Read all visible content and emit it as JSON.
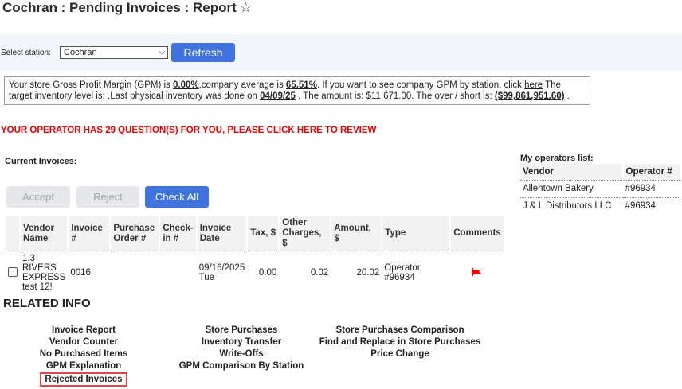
{
  "header": {
    "title": "Cochran : Pending Invoices : Report",
    "favorite_icon": "star-outline-icon"
  },
  "station": {
    "label": "Select station:",
    "selected": "Cochran",
    "refresh_label": "Refresh"
  },
  "info": {
    "t1": "Your store Gross Profit Margin (GPM) is ",
    "gpm": "0.00%",
    "t2": ",company average is ",
    "avg": "65.51%",
    "t3": ". If you want to see company GPM by station, click ",
    "here": "here",
    "t4": " The target inventory level is: .Last physical inventory was done on ",
    "date": "04/09/25",
    "t5": " . The amount is: $11,671.00. The over / short is: ",
    "overshort": "($99,861,951.60)",
    "t6": " ."
  },
  "alert": "YOUR OPERATOR HAS 29 QUESTION(S) FOR YOU, PLEASE CLICK HERE TO REVIEW",
  "invoices": {
    "title": "Current Invoices:",
    "accept": "Accept",
    "reject": "Reject",
    "check_all": "Check All",
    "columns": [
      "Vendor Name",
      "Invoice #",
      "Purchase Order #",
      "Check-in #",
      "Invoice Date",
      "Tax, $",
      "Other Charges, $",
      "Amount, $",
      "Type",
      "Comments"
    ],
    "rows": [
      {
        "vendor": "1.3 RIVERS EXPRESS test 12!",
        "invoice": "0016",
        "po": "",
        "checkin": "",
        "date": "09/16/2025",
        "day": "Tue",
        "tax": "0.00",
        "other": "0.02",
        "amount": "20.02",
        "type": "Operator #96934",
        "comment_icon": "red-flag-icon"
      }
    ]
  },
  "operators": {
    "title": "My operators list:",
    "columns": [
      "Vendor",
      "Operator #"
    ],
    "rows": [
      {
        "vendor": "Allentown Bakery",
        "op": "#96934"
      },
      {
        "vendor": "J & L Distributors LLC",
        "op": "#96934"
      }
    ]
  },
  "related": {
    "title": "RELATED INFO",
    "col1": [
      "Invoice Report",
      "Vendor Counter",
      "No Purchased Items",
      "GPM Explanation",
      "Rejected Invoices"
    ],
    "col2": [
      "Store Purchases",
      "Inventory Transfer",
      "Write-Offs",
      "GPM Comparison By Station"
    ],
    "col3": [
      "Store Purchases Comparison",
      "Find and Replace in Store Purchases",
      "Price Change"
    ]
  }
}
